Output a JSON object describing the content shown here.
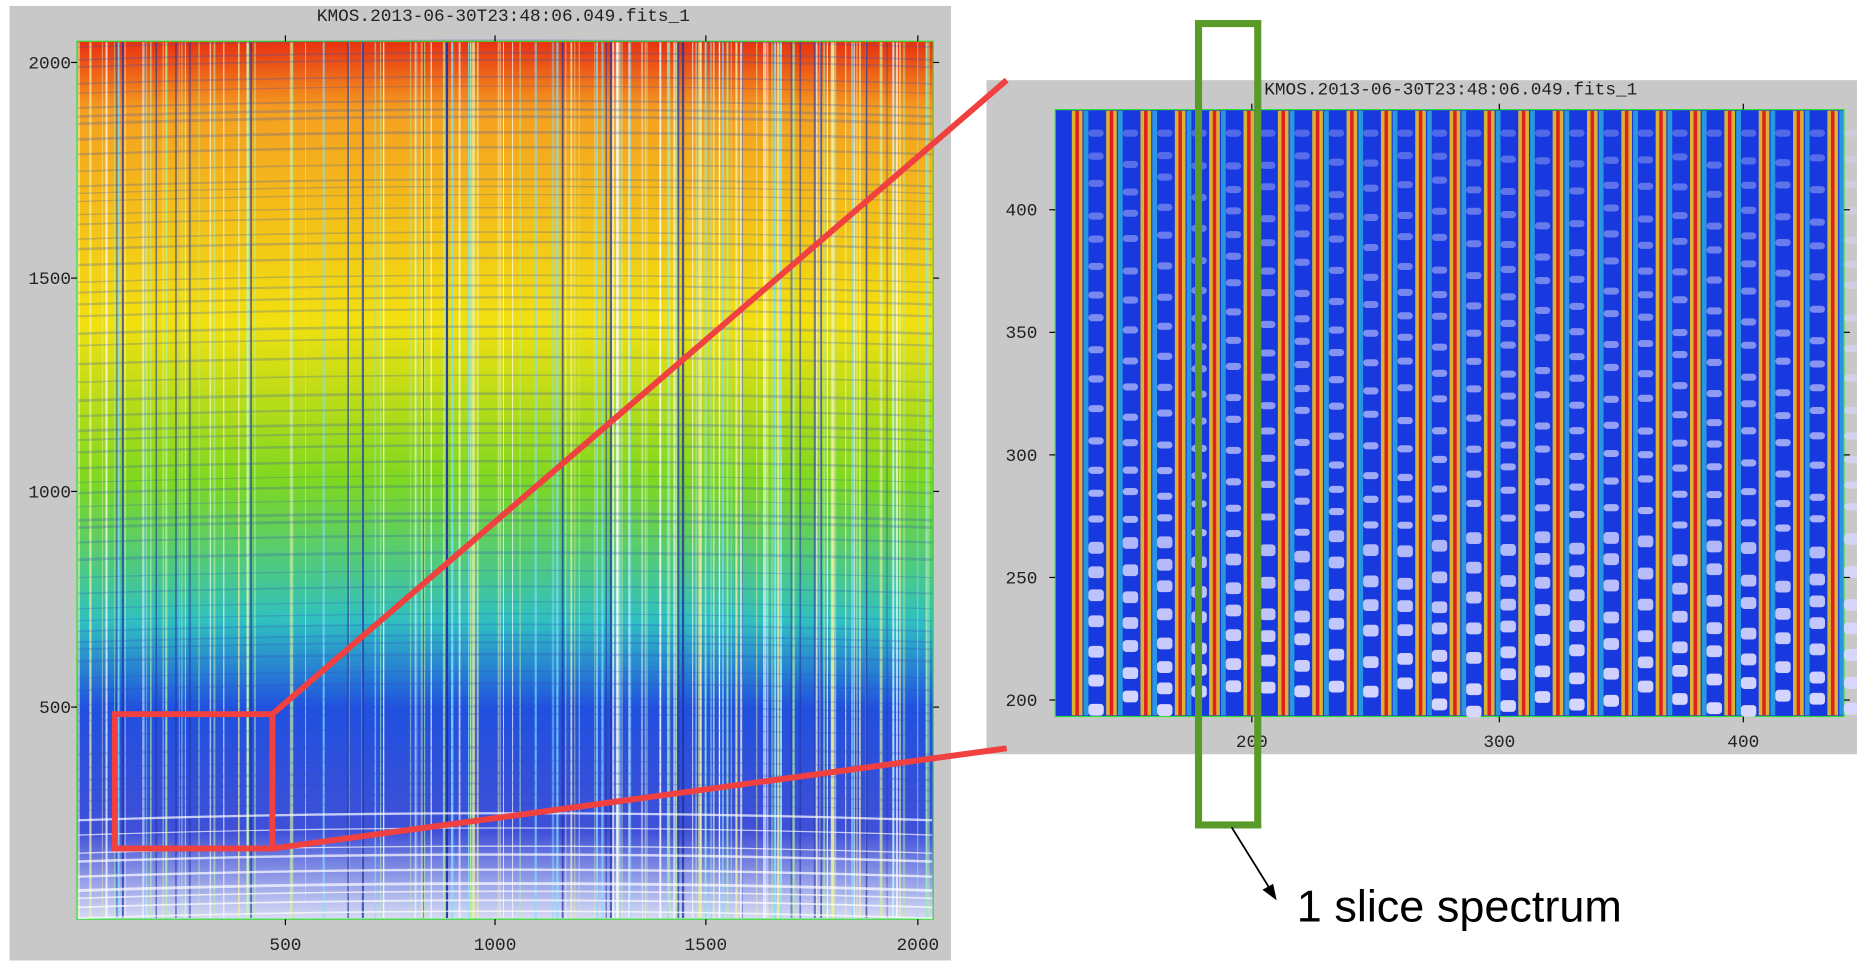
{
  "panels": [
    {
      "title": "KMOS.2013-06-30T23:48:06.049.fits_1",
      "yticks": [
        "2000",
        "1500",
        "1000",
        "500"
      ],
      "xticks": [
        "500",
        "1000",
        "1500",
        "2000"
      ]
    },
    {
      "title": "KMOS.2013-06-30T23:48:06.049.fits_1",
      "yticks": [
        "400",
        "350",
        "300",
        "250",
        "200"
      ],
      "xticks": [
        "200",
        "300",
        "400"
      ]
    }
  ],
  "annotation": "1 slice spectrum"
}
